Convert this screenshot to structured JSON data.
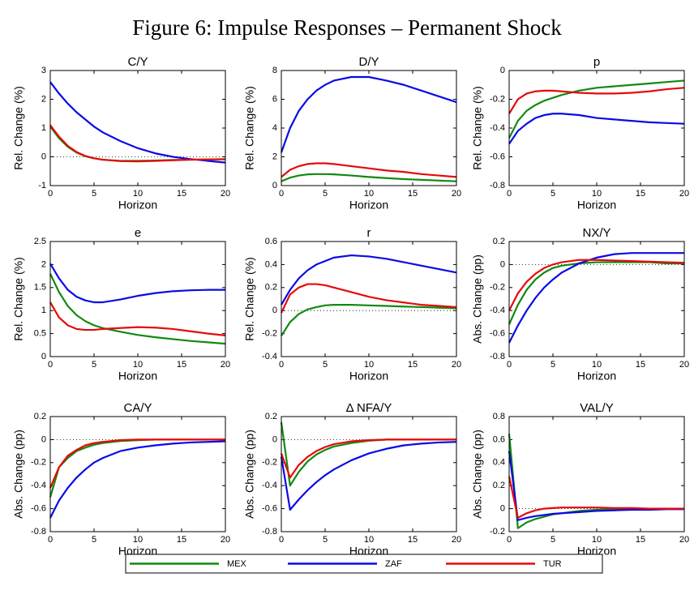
{
  "figure_title": "Figure 6: Impulse Responses – Permanent Shock",
  "chart_data": [
    {
      "type": "line",
      "title": "C/Y",
      "xlabel": "Horizon",
      "ylabel": "Rel. Change (%)",
      "x": [
        0,
        1,
        2,
        3,
        4,
        5,
        6,
        8,
        10,
        12,
        14,
        16,
        18,
        20
      ],
      "xlim": [
        0,
        20
      ],
      "xticks": [
        0,
        5,
        10,
        15,
        20
      ],
      "ylim": [
        -1,
        3
      ],
      "yticks": [
        -1,
        0,
        1,
        2,
        3
      ],
      "zero_line": true,
      "series": [
        {
          "name": "MEX",
          "color": "#108a10",
          "values": [
            1.05,
            0.65,
            0.35,
            0.15,
            0.02,
            -0.05,
            -0.1,
            -0.14,
            -0.14,
            -0.13,
            -0.11,
            -0.1,
            -0.09,
            -0.08
          ]
        },
        {
          "name": "ZAF",
          "color": "#0a0ae6",
          "values": [
            2.6,
            2.2,
            1.85,
            1.55,
            1.3,
            1.05,
            0.85,
            0.55,
            0.3,
            0.12,
            0.0,
            -0.08,
            -0.14,
            -0.2
          ]
        },
        {
          "name": "TUR",
          "color": "#e60a0a",
          "values": [
            1.1,
            0.7,
            0.38,
            0.17,
            0.03,
            -0.05,
            -0.1,
            -0.15,
            -0.16,
            -0.14,
            -0.12,
            -0.1,
            -0.09,
            -0.09
          ]
        }
      ]
    },
    {
      "type": "line",
      "title": "D/Y",
      "xlabel": "Horizon",
      "ylabel": "Rel. Change (%)",
      "x": [
        0,
        1,
        2,
        3,
        4,
        5,
        6,
        8,
        10,
        12,
        14,
        16,
        18,
        20
      ],
      "xlim": [
        0,
        20
      ],
      "xticks": [
        0,
        5,
        10,
        15,
        20
      ],
      "ylim": [
        0,
        8
      ],
      "yticks": [
        0,
        2,
        4,
        6,
        8
      ],
      "zero_line": true,
      "series": [
        {
          "name": "MEX",
          "color": "#108a10",
          "values": [
            0.3,
            0.55,
            0.7,
            0.78,
            0.8,
            0.8,
            0.78,
            0.7,
            0.6,
            0.52,
            0.45,
            0.4,
            0.35,
            0.3
          ]
        },
        {
          "name": "ZAF",
          "color": "#0a0ae6",
          "values": [
            2.3,
            4.0,
            5.2,
            6.0,
            6.6,
            7.0,
            7.3,
            7.55,
            7.55,
            7.3,
            7.0,
            6.6,
            6.2,
            5.8
          ]
        },
        {
          "name": "TUR",
          "color": "#e60a0a",
          "values": [
            0.6,
            1.1,
            1.35,
            1.5,
            1.55,
            1.55,
            1.5,
            1.35,
            1.2,
            1.05,
            0.95,
            0.8,
            0.7,
            0.6
          ]
        }
      ]
    },
    {
      "type": "line",
      "title": "p",
      "xlabel": "Horizon",
      "ylabel": "Rel. Change (%)",
      "x": [
        0,
        1,
        2,
        3,
        4,
        5,
        6,
        8,
        10,
        12,
        14,
        16,
        18,
        20
      ],
      "xlim": [
        0,
        20
      ],
      "xticks": [
        0,
        5,
        10,
        15,
        20
      ],
      "ylim": [
        -0.8,
        0
      ],
      "yticks": [
        -0.8,
        -0.6,
        -0.4,
        -0.2,
        0
      ],
      "zero_line": true,
      "series": [
        {
          "name": "MEX",
          "color": "#108a10",
          "values": [
            -0.47,
            -0.35,
            -0.28,
            -0.24,
            -0.21,
            -0.19,
            -0.17,
            -0.14,
            -0.12,
            -0.11,
            -0.1,
            -0.09,
            -0.08,
            -0.07
          ]
        },
        {
          "name": "ZAF",
          "color": "#0a0ae6",
          "values": [
            -0.51,
            -0.42,
            -0.37,
            -0.33,
            -0.31,
            -0.3,
            -0.3,
            -0.31,
            -0.33,
            -0.34,
            -0.35,
            -0.36,
            -0.365,
            -0.37
          ]
        },
        {
          "name": "TUR",
          "color": "#e60a0a",
          "values": [
            -0.3,
            -0.2,
            -0.16,
            -0.145,
            -0.14,
            -0.14,
            -0.145,
            -0.155,
            -0.16,
            -0.16,
            -0.155,
            -0.145,
            -0.13,
            -0.12
          ]
        }
      ]
    },
    {
      "type": "line",
      "title": "e",
      "xlabel": "Horizon",
      "ylabel": "Rel. Change (%)",
      "x": [
        0,
        1,
        2,
        3,
        4,
        5,
        6,
        8,
        10,
        12,
        14,
        16,
        18,
        20
      ],
      "xlim": [
        0,
        20
      ],
      "xticks": [
        0,
        5,
        10,
        15,
        20
      ],
      "ylim": [
        0,
        2.5
      ],
      "yticks": [
        0,
        0.5,
        1,
        1.5,
        2,
        2.5
      ],
      "zero_line": true,
      "series": [
        {
          "name": "MEX",
          "color": "#108a10",
          "values": [
            1.8,
            1.4,
            1.1,
            0.9,
            0.77,
            0.68,
            0.62,
            0.54,
            0.47,
            0.42,
            0.38,
            0.34,
            0.31,
            0.28
          ]
        },
        {
          "name": "ZAF",
          "color": "#0a0ae6",
          "values": [
            2.02,
            1.7,
            1.45,
            1.3,
            1.22,
            1.18,
            1.18,
            1.24,
            1.32,
            1.38,
            1.42,
            1.44,
            1.45,
            1.45
          ]
        },
        {
          "name": "TUR",
          "color": "#e60a0a",
          "values": [
            1.18,
            0.85,
            0.68,
            0.6,
            0.58,
            0.58,
            0.6,
            0.62,
            0.64,
            0.63,
            0.6,
            0.55,
            0.5,
            0.46
          ]
        }
      ]
    },
    {
      "type": "line",
      "title": "r",
      "xlabel": "Horizon",
      "ylabel": "Rel. Change (%)",
      "x": [
        0,
        1,
        2,
        3,
        4,
        5,
        6,
        8,
        10,
        12,
        14,
        16,
        18,
        20
      ],
      "xlim": [
        0,
        20
      ],
      "xticks": [
        0,
        5,
        10,
        15,
        20
      ],
      "ylim": [
        -0.4,
        0.6
      ],
      "yticks": [
        -0.4,
        -0.2,
        0,
        0.2,
        0.4,
        0.6
      ],
      "zero_line": true,
      "series": [
        {
          "name": "MEX",
          "color": "#108a10",
          "values": [
            -0.22,
            -0.1,
            -0.03,
            0.01,
            0.03,
            0.045,
            0.05,
            0.05,
            0.045,
            0.04,
            0.035,
            0.03,
            0.025,
            0.02
          ]
        },
        {
          "name": "ZAF",
          "color": "#0a0ae6",
          "values": [
            0.05,
            0.18,
            0.28,
            0.35,
            0.4,
            0.43,
            0.46,
            0.48,
            0.47,
            0.45,
            0.42,
            0.39,
            0.36,
            0.33
          ]
        },
        {
          "name": "TUR",
          "color": "#e60a0a",
          "values": [
            -0.02,
            0.14,
            0.2,
            0.23,
            0.23,
            0.22,
            0.2,
            0.16,
            0.12,
            0.09,
            0.07,
            0.05,
            0.04,
            0.03
          ]
        }
      ]
    },
    {
      "type": "line",
      "title": "NX/Y",
      "xlabel": "Horizon",
      "ylabel": "Abs. Change (pp)",
      "x": [
        0,
        1,
        2,
        3,
        4,
        5,
        6,
        8,
        10,
        12,
        14,
        16,
        18,
        20
      ],
      "xlim": [
        0,
        20
      ],
      "xticks": [
        0,
        5,
        10,
        15,
        20
      ],
      "ylim": [
        -0.8,
        0.2
      ],
      "yticks": [
        -0.8,
        -0.6,
        -0.4,
        -0.2,
        0,
        0.2
      ],
      "zero_line": true,
      "series": [
        {
          "name": "MEX",
          "color": "#108a10",
          "values": [
            -0.52,
            -0.35,
            -0.22,
            -0.13,
            -0.07,
            -0.03,
            -0.01,
            0.01,
            0.02,
            0.02,
            0.02,
            0.02,
            0.01,
            0.01
          ]
        },
        {
          "name": "ZAF",
          "color": "#0a0ae6",
          "values": [
            -0.68,
            -0.53,
            -0.4,
            -0.29,
            -0.2,
            -0.13,
            -0.07,
            0.01,
            0.06,
            0.09,
            0.1,
            0.1,
            0.1,
            0.1
          ]
        },
        {
          "name": "TUR",
          "color": "#e60a0a",
          "values": [
            -0.4,
            -0.25,
            -0.15,
            -0.08,
            -0.03,
            0.0,
            0.02,
            0.04,
            0.04,
            0.035,
            0.03,
            0.025,
            0.02,
            0.015
          ]
        }
      ]
    },
    {
      "type": "line",
      "title": "CA/Y",
      "xlabel": "Horizon",
      "ylabel": "Abs. Change (pp)",
      "x": [
        0,
        1,
        2,
        3,
        4,
        5,
        6,
        8,
        10,
        12,
        14,
        16,
        18,
        20
      ],
      "xlim": [
        0,
        20
      ],
      "xticks": [
        0,
        5,
        10,
        15,
        20
      ],
      "ylim": [
        -0.8,
        0.2
      ],
      "yticks": [
        -0.8,
        -0.6,
        -0.4,
        -0.2,
        0,
        0.2
      ],
      "zero_line": true,
      "series": [
        {
          "name": "MEX",
          "color": "#108a10",
          "values": [
            -0.5,
            -0.24,
            -0.16,
            -0.1,
            -0.07,
            -0.045,
            -0.03,
            -0.012,
            -0.005,
            0,
            0,
            0,
            0,
            0
          ]
        },
        {
          "name": "ZAF",
          "color": "#0a0ae6",
          "values": [
            -0.68,
            -0.53,
            -0.42,
            -0.33,
            -0.26,
            -0.2,
            -0.16,
            -0.1,
            -0.07,
            -0.05,
            -0.035,
            -0.025,
            -0.02,
            -0.015
          ]
        },
        {
          "name": "TUR",
          "color": "#e60a0a",
          "values": [
            -0.42,
            -0.24,
            -0.14,
            -0.09,
            -0.05,
            -0.03,
            -0.02,
            -0.005,
            0,
            0,
            0,
            0,
            0,
            0
          ]
        }
      ]
    },
    {
      "type": "line",
      "title": "Δ NFA/Y",
      "xlabel": "Horizon",
      "ylabel": "Abs. Change (pp)",
      "x": [
        0,
        1,
        2,
        3,
        4,
        5,
        6,
        8,
        10,
        12,
        14,
        16,
        18,
        20
      ],
      "xlim": [
        0,
        20
      ],
      "xticks": [
        0,
        5,
        10,
        15,
        20
      ],
      "ylim": [
        -0.8,
        0.2
      ],
      "yticks": [
        -0.8,
        -0.6,
        -0.4,
        -0.2,
        0,
        0.2
      ],
      "zero_line": true,
      "series": [
        {
          "name": "MEX",
          "color": "#108a10",
          "values": [
            0.15,
            -0.4,
            -0.28,
            -0.19,
            -0.13,
            -0.09,
            -0.06,
            -0.03,
            -0.01,
            0,
            0,
            0,
            0,
            0
          ]
        },
        {
          "name": "ZAF",
          "color": "#0a0ae6",
          "values": [
            -0.15,
            -0.61,
            -0.52,
            -0.44,
            -0.37,
            -0.31,
            -0.26,
            -0.18,
            -0.12,
            -0.08,
            -0.05,
            -0.035,
            -0.025,
            -0.02
          ]
        },
        {
          "name": "TUR",
          "color": "#e60a0a",
          "values": [
            -0.12,
            -0.33,
            -0.22,
            -0.15,
            -0.1,
            -0.065,
            -0.04,
            -0.015,
            -0.005,
            0,
            0,
            0,
            0,
            0
          ]
        }
      ]
    },
    {
      "type": "line",
      "title": "VAL/Y",
      "xlabel": "Horizon",
      "ylabel": "Abs. Change (pp)",
      "x": [
        0,
        1,
        2,
        3,
        4,
        5,
        6,
        8,
        10,
        12,
        14,
        16,
        18,
        20
      ],
      "xlim": [
        0,
        20
      ],
      "xticks": [
        0,
        5,
        10,
        15,
        20
      ],
      "ylim": [
        -0.2,
        0.8
      ],
      "yticks": [
        -0.2,
        0,
        0.2,
        0.4,
        0.6,
        0.8
      ],
      "zero_line": true,
      "series": [
        {
          "name": "MEX",
          "color": "#108a10",
          "values": [
            0.65,
            -0.17,
            -0.12,
            -0.09,
            -0.07,
            -0.05,
            -0.04,
            -0.02,
            -0.01,
            -0.005,
            0,
            0,
            0,
            0
          ]
        },
        {
          "name": "ZAF",
          "color": "#0a0ae6",
          "values": [
            0.5,
            -0.1,
            -0.08,
            -0.065,
            -0.055,
            -0.045,
            -0.04,
            -0.03,
            -0.02,
            -0.015,
            -0.01,
            -0.01,
            -0.005,
            -0.005
          ]
        },
        {
          "name": "TUR",
          "color": "#e60a0a",
          "values": [
            0.28,
            -0.08,
            -0.04,
            -0.015,
            0.0,
            0.005,
            0.01,
            0.01,
            0.01,
            0.005,
            0.005,
            0,
            0,
            0
          ]
        }
      ]
    }
  ]
}
